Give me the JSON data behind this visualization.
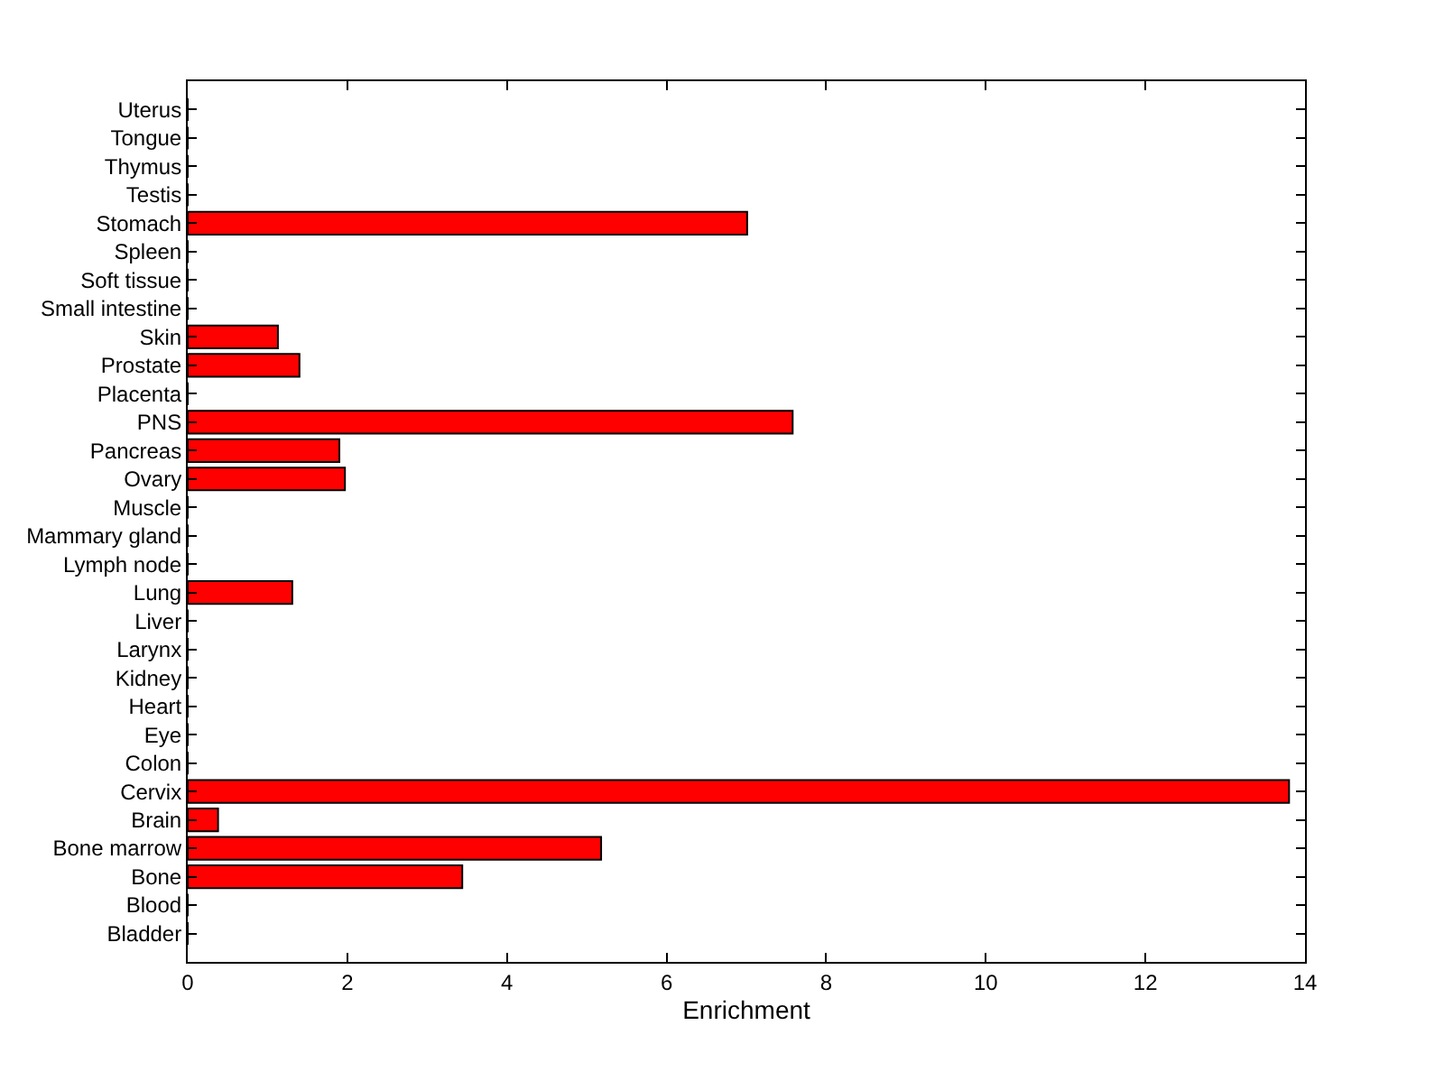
{
  "chart_data": {
    "type": "bar",
    "orientation": "horizontal",
    "xlabel": "Enrichment",
    "categories": [
      "Uterus",
      "Tongue",
      "Thymus",
      "Testis",
      "Stomach",
      "Spleen",
      "Soft tissue",
      "Small intestine",
      "Skin",
      "Prostate",
      "Placenta",
      "PNS",
      "Pancreas",
      "Ovary",
      "Muscle",
      "Mammary gland",
      "Lymph node",
      "Lung",
      "Liver",
      "Larynx",
      "Kidney",
      "Heart",
      "Eye",
      "Colon",
      "Cervix",
      "Brain",
      "Bone marrow",
      "Bone",
      "Blood",
      "Bladder"
    ],
    "values": [
      0,
      0,
      0,
      0,
      7.01,
      0,
      0,
      0,
      1.13,
      1.4,
      0,
      7.58,
      1.9,
      1.97,
      0,
      0,
      0,
      1.31,
      0,
      0,
      0,
      0,
      0,
      0,
      13.8,
      0.38,
      5.18,
      3.44,
      0,
      0
    ],
    "color": "#ff0000",
    "xlim": [
      0,
      14
    ],
    "xticks": [
      0,
      2,
      4,
      6,
      8,
      10,
      12,
      14
    ],
    "legend": false
  }
}
